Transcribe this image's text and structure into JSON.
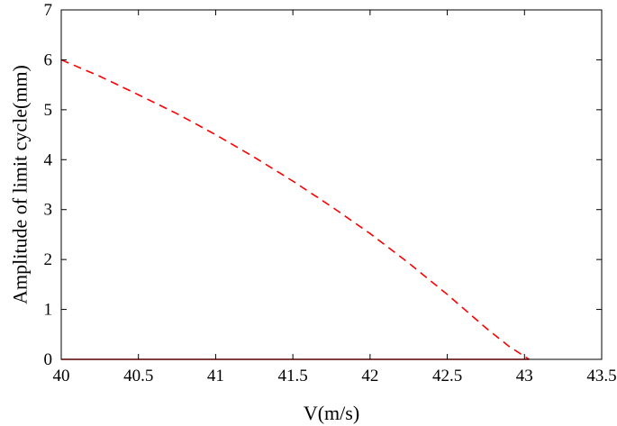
{
  "chart_data": {
    "type": "line",
    "title": "",
    "xlabel": "V(m/s)",
    "ylabel": "Amplitude of limit cycle(mm)",
    "xlim": [
      40,
      43.5
    ],
    "ylim": [
      0,
      7
    ],
    "xticks": [
      40,
      40.5,
      41,
      41.5,
      42,
      42.5,
      43,
      43.5
    ],
    "xtick_labels": [
      "40",
      "40.5",
      "41",
      "41.5",
      "42",
      "42.5",
      "43",
      "43.5"
    ],
    "yticks": [
      0,
      1,
      2,
      3,
      4,
      5,
      6,
      7
    ],
    "ytick_labels": [
      "0",
      "1",
      "2",
      "3",
      "4",
      "5",
      "6",
      "7"
    ],
    "grid": false,
    "series": [
      {
        "style": "dashed",
        "color": "#ff0000",
        "x": [
          40.0,
          40.25,
          40.5,
          40.75,
          41.0,
          41.25,
          41.5,
          41.75,
          42.0,
          42.25,
          42.5,
          42.75,
          42.9,
          43.03
        ],
        "y": [
          6.0,
          5.67,
          5.3,
          4.92,
          4.5,
          4.05,
          3.57,
          3.06,
          2.52,
          1.93,
          1.3,
          0.63,
          0.26,
          0.0
        ]
      },
      {
        "style": "solid",
        "color": "#ff0000",
        "x": [
          40.0,
          43.03
        ],
        "y": [
          0.0,
          0.0
        ]
      }
    ]
  }
}
